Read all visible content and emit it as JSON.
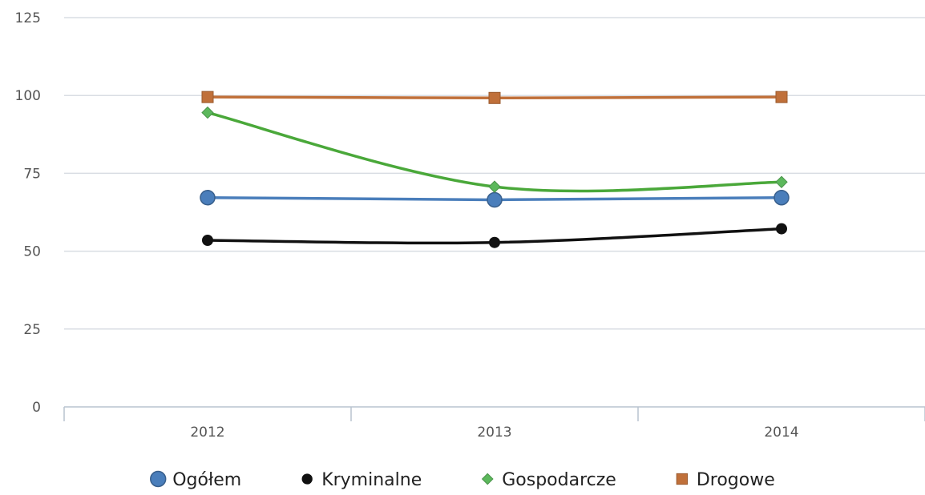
{
  "chart_data": {
    "type": "line",
    "title": "",
    "xlabel": "",
    "ylabel": "",
    "categories": [
      "2012",
      "2013",
      "2014"
    ],
    "ylim": [
      0,
      125
    ],
    "yticks": [
      0,
      25,
      50,
      75,
      100,
      125
    ],
    "grid": true,
    "legend_position": "bottom",
    "series": [
      {
        "name": "Ogółem",
        "values": [
          67.2,
          66.5,
          67.2
        ],
        "color": "#4a7ebb",
        "marker": "circle",
        "smooth": false
      },
      {
        "name": "Kryminalne",
        "values": [
          53.5,
          52.8,
          57.2
        ],
        "color": "#111111",
        "marker": "dot",
        "smooth": true
      },
      {
        "name": "Gospodarcze",
        "values": [
          94.5,
          70.7,
          72.2
        ],
        "color": "#5cb85c",
        "marker": "diamond",
        "smooth": true
      },
      {
        "name": "Drogowe",
        "values": [
          99.5,
          99.2,
          99.5
        ],
        "color": "#c0703a",
        "marker": "square",
        "smooth": false
      }
    ]
  }
}
